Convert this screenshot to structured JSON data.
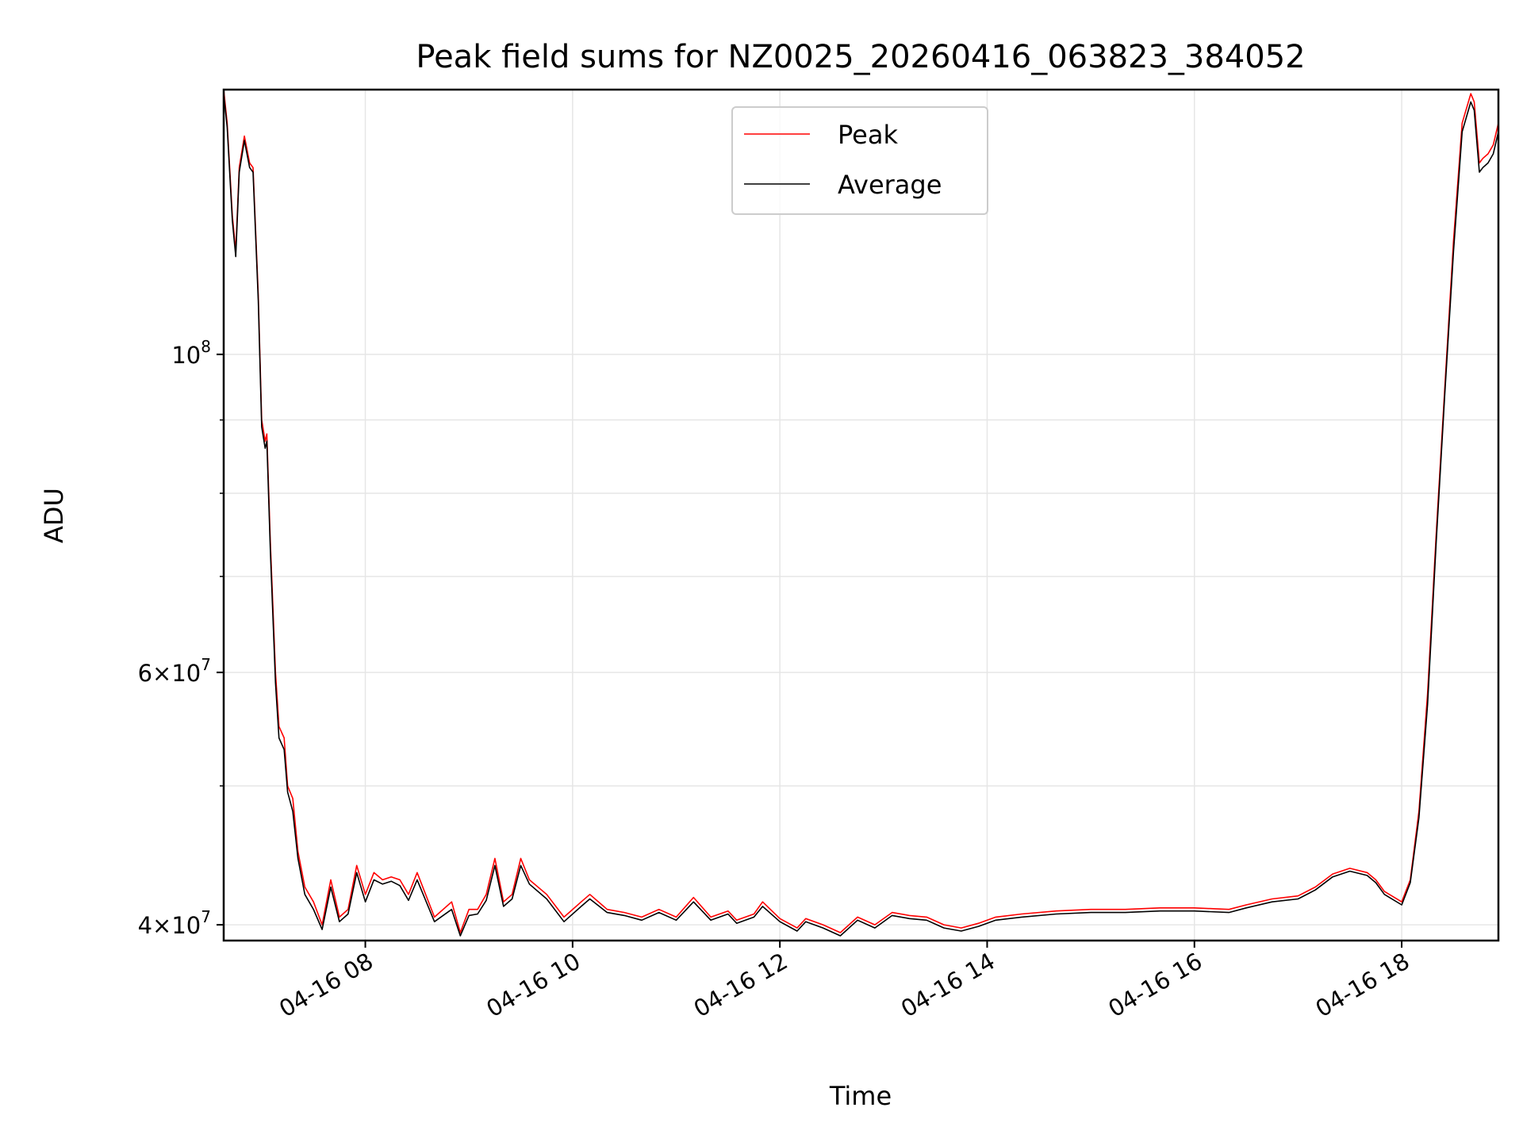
{
  "chart_data": {
    "type": "line",
    "title": "Peak field sums for NZ0025_20260416_063823_384052",
    "xlabel": "Time",
    "ylabel": "ADU",
    "yscale": "log",
    "grid": true,
    "legend_placement": "top-center",
    "xlim": [
      "2026-04-16 06:38",
      "2026-04-16 18:56"
    ],
    "ylim": [
      39000000,
      153000000
    ],
    "x_ticks": [
      {
        "x": "2026-04-16 08:00",
        "label": "04-16 08"
      },
      {
        "x": "2026-04-16 10:00",
        "label": "04-16 10"
      },
      {
        "x": "2026-04-16 12:00",
        "label": "04-16 12"
      },
      {
        "x": "2026-04-16 14:00",
        "label": "04-16 14"
      },
      {
        "x": "2026-04-16 16:00",
        "label": "04-16 16"
      },
      {
        "x": "2026-04-16 18:00",
        "label": "04-16 18"
      }
    ],
    "y_major_ticks": [
      {
        "y": 100000000,
        "mantissa": "",
        "exponent": "8"
      },
      {
        "y": 60000000,
        "mantissa": "6",
        "exponent": "7"
      },
      {
        "y": 40000000,
        "mantissa": "4",
        "exponent": "7"
      }
    ],
    "y_minor_ticks": [
      50000000,
      70000000,
      80000000,
      90000000
    ],
    "colors": {
      "peak": "#ff0000",
      "average": "#000000",
      "grid": "#e6e6e6"
    },
    "series": [
      {
        "name": "Peak",
        "x": [
          "2026-04-16 06:38",
          "2026-04-16 06:40",
          "2026-04-16 06:43",
          "2026-04-16 06:45",
          "2026-04-16 06:47",
          "2026-04-16 06:50",
          "2026-04-16 06:53",
          "2026-04-16 06:55",
          "2026-04-16 06:58",
          "2026-04-16 07:00",
          "2026-04-16 07:02",
          "2026-04-16 07:03",
          "2026-04-16 07:05",
          "2026-04-16 07:08",
          "2026-04-16 07:10",
          "2026-04-16 07:13",
          "2026-04-16 07:15",
          "2026-04-16 07:18",
          "2026-04-16 07:21",
          "2026-04-16 07:25",
          "2026-04-16 07:30",
          "2026-04-16 07:35",
          "2026-04-16 07:40",
          "2026-04-16 07:45",
          "2026-04-16 07:50",
          "2026-04-16 07:55",
          "2026-04-16 08:00",
          "2026-04-16 08:05",
          "2026-04-16 08:10",
          "2026-04-16 08:15",
          "2026-04-16 08:20",
          "2026-04-16 08:25",
          "2026-04-16 08:30",
          "2026-04-16 08:40",
          "2026-04-16 08:50",
          "2026-04-16 08:55",
          "2026-04-16 09:00",
          "2026-04-16 09:05",
          "2026-04-16 09:10",
          "2026-04-16 09:15",
          "2026-04-16 09:20",
          "2026-04-16 09:25",
          "2026-04-16 09:30",
          "2026-04-16 09:35",
          "2026-04-16 09:45",
          "2026-04-16 09:55",
          "2026-04-16 10:05",
          "2026-04-16 10:10",
          "2026-04-16 10:20",
          "2026-04-16 10:30",
          "2026-04-16 10:40",
          "2026-04-16 10:50",
          "2026-04-16 11:00",
          "2026-04-16 11:10",
          "2026-04-16 11:20",
          "2026-04-16 11:30",
          "2026-04-16 11:35",
          "2026-04-16 11:45",
          "2026-04-16 11:50",
          "2026-04-16 12:00",
          "2026-04-16 12:10",
          "2026-04-16 12:15",
          "2026-04-16 12:25",
          "2026-04-16 12:35",
          "2026-04-16 12:45",
          "2026-04-16 12:55",
          "2026-04-16 13:05",
          "2026-04-16 13:15",
          "2026-04-16 13:25",
          "2026-04-16 13:35",
          "2026-04-16 13:45",
          "2026-04-16 13:55",
          "2026-04-16 14:05",
          "2026-04-16 14:20",
          "2026-04-16 14:40",
          "2026-04-16 15:00",
          "2026-04-16 15:20",
          "2026-04-16 15:40",
          "2026-04-16 16:00",
          "2026-04-16 16:20",
          "2026-04-16 16:30",
          "2026-04-16 16:45",
          "2026-04-16 17:00",
          "2026-04-16 17:10",
          "2026-04-16 17:20",
          "2026-04-16 17:30",
          "2026-04-16 17:40",
          "2026-04-16 17:45",
          "2026-04-16 17:50",
          "2026-04-16 18:00",
          "2026-04-16 18:05",
          "2026-04-16 18:10",
          "2026-04-16 18:15",
          "2026-04-16 18:20",
          "2026-04-16 18:25",
          "2026-04-16 18:30",
          "2026-04-16 18:35",
          "2026-04-16 18:40",
          "2026-04-16 18:42",
          "2026-04-16 18:45",
          "2026-04-16 18:47",
          "2026-04-16 18:50",
          "2026-04-16 18:53",
          "2026-04-16 18:56"
        ],
        "y": [
          153000000,
          145000000,
          125000000,
          118000000,
          135000000,
          142000000,
          136000000,
          135000000,
          110000000,
          90000000,
          87000000,
          88000000,
          74000000,
          60000000,
          55000000,
          54000000,
          50000000,
          49000000,
          45000000,
          42500000,
          41500000,
          40000000,
          43000000,
          40500000,
          41000000,
          44000000,
          42000000,
          43500000,
          43000000,
          43200000,
          43000000,
          42000000,
          43500000,
          40500000,
          41500000,
          39500000,
          41000000,
          41000000,
          42000000,
          44500000,
          41500000,
          42000000,
          44500000,
          43000000,
          42000000,
          40500000,
          41500000,
          42000000,
          41000000,
          40800000,
          40500000,
          41000000,
          40500000,
          41800000,
          40500000,
          40900000,
          40300000,
          40700000,
          41500000,
          40400000,
          39800000,
          40400000,
          40000000,
          39500000,
          40500000,
          40000000,
          40800000,
          40600000,
          40500000,
          40000000,
          39800000,
          40100000,
          40500000,
          40700000,
          40900000,
          41000000,
          41000000,
          41100000,
          41100000,
          41000000,
          41300000,
          41700000,
          41900000,
          42500000,
          43400000,
          43800000,
          43500000,
          43000000,
          42200000,
          41500000,
          43000000,
          48000000,
          58000000,
          75000000,
          95000000,
          120000000,
          145000000,
          152000000,
          150000000,
          136000000,
          137000000,
          138000000,
          140000000,
          145000000
        ]
      },
      {
        "name": "Average",
        "x": [
          "2026-04-16 06:38",
          "2026-04-16 06:40",
          "2026-04-16 06:43",
          "2026-04-16 06:45",
          "2026-04-16 06:47",
          "2026-04-16 06:50",
          "2026-04-16 06:53",
          "2026-04-16 06:55",
          "2026-04-16 06:58",
          "2026-04-16 07:00",
          "2026-04-16 07:02",
          "2026-04-16 07:03",
          "2026-04-16 07:05",
          "2026-04-16 07:08",
          "2026-04-16 07:10",
          "2026-04-16 07:13",
          "2026-04-16 07:15",
          "2026-04-16 07:18",
          "2026-04-16 07:21",
          "2026-04-16 07:25",
          "2026-04-16 07:30",
          "2026-04-16 07:35",
          "2026-04-16 07:40",
          "2026-04-16 07:45",
          "2026-04-16 07:50",
          "2026-04-16 07:55",
          "2026-04-16 08:00",
          "2026-04-16 08:05",
          "2026-04-16 08:10",
          "2026-04-16 08:15",
          "2026-04-16 08:20",
          "2026-04-16 08:25",
          "2026-04-16 08:30",
          "2026-04-16 08:40",
          "2026-04-16 08:50",
          "2026-04-16 08:55",
          "2026-04-16 09:00",
          "2026-04-16 09:05",
          "2026-04-16 09:10",
          "2026-04-16 09:15",
          "2026-04-16 09:20",
          "2026-04-16 09:25",
          "2026-04-16 09:30",
          "2026-04-16 09:35",
          "2026-04-16 09:45",
          "2026-04-16 09:55",
          "2026-04-16 10:05",
          "2026-04-16 10:10",
          "2026-04-16 10:20",
          "2026-04-16 10:30",
          "2026-04-16 10:40",
          "2026-04-16 10:50",
          "2026-04-16 11:00",
          "2026-04-16 11:10",
          "2026-04-16 11:20",
          "2026-04-16 11:30",
          "2026-04-16 11:35",
          "2026-04-16 11:45",
          "2026-04-16 11:50",
          "2026-04-16 12:00",
          "2026-04-16 12:10",
          "2026-04-16 12:15",
          "2026-04-16 12:25",
          "2026-04-16 12:35",
          "2026-04-16 12:45",
          "2026-04-16 12:55",
          "2026-04-16 13:05",
          "2026-04-16 13:15",
          "2026-04-16 13:25",
          "2026-04-16 13:35",
          "2026-04-16 13:45",
          "2026-04-16 13:55",
          "2026-04-16 14:05",
          "2026-04-16 14:20",
          "2026-04-16 14:40",
          "2026-04-16 15:00",
          "2026-04-16 15:20",
          "2026-04-16 15:40",
          "2026-04-16 16:00",
          "2026-04-16 16:20",
          "2026-04-16 16:30",
          "2026-04-16 16:45",
          "2026-04-16 17:00",
          "2026-04-16 17:10",
          "2026-04-16 17:20",
          "2026-04-16 17:30",
          "2026-04-16 17:40",
          "2026-04-16 17:45",
          "2026-04-16 17:50",
          "2026-04-16 18:00",
          "2026-04-16 18:05",
          "2026-04-16 18:10",
          "2026-04-16 18:15",
          "2026-04-16 18:20",
          "2026-04-16 18:25",
          "2026-04-16 18:30",
          "2026-04-16 18:35",
          "2026-04-16 18:40",
          "2026-04-16 18:42",
          "2026-04-16 18:45",
          "2026-04-16 18:47",
          "2026-04-16 18:50",
          "2026-04-16 18:53",
          "2026-04-16 18:56"
        ],
        "y": [
          152000000,
          144000000,
          124000000,
          117000000,
          134000000,
          141000000,
          135000000,
          134000000,
          109000000,
          89000000,
          86000000,
          87000000,
          73000000,
          59000000,
          54000000,
          53000000,
          49500000,
          48000000,
          44500000,
          42000000,
          41000000,
          39700000,
          42500000,
          40200000,
          40700000,
          43500000,
          41500000,
          43000000,
          42700000,
          42900000,
          42600000,
          41600000,
          43000000,
          40200000,
          41000000,
          39300000,
          40600000,
          40700000,
          41600000,
          44000000,
          41200000,
          41700000,
          44000000,
          42700000,
          41700000,
          40200000,
          41200000,
          41700000,
          40800000,
          40600000,
          40300000,
          40800000,
          40300000,
          41500000,
          40300000,
          40700000,
          40100000,
          40500000,
          41200000,
          40200000,
          39600000,
          40200000,
          39800000,
          39300000,
          40300000,
          39800000,
          40600000,
          40400000,
          40300000,
          39800000,
          39600000,
          39900000,
          40300000,
          40500000,
          40700000,
          40800000,
          40800000,
          40900000,
          40900000,
          40800000,
          41100000,
          41500000,
          41700000,
          42300000,
          43200000,
          43600000,
          43300000,
          42800000,
          42000000,
          41300000,
          42800000,
          47500000,
          57000000,
          74000000,
          94000000,
          118000000,
          143000000,
          150000000,
          148000000,
          134000000,
          135000000,
          136000000,
          138000000,
          143000000
        ]
      }
    ]
  }
}
